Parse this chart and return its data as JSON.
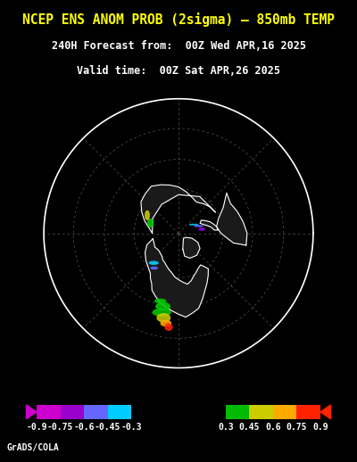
{
  "title_line1": "NCEP ENS ANOM PROB (2sigma) – 850mb TEMP",
  "title_line2": "240H Forecast from:  00Z Wed APR,16 2025",
  "title_line3": "Valid time:  00Z Sat APR,26 2025",
  "background_color": "#000000",
  "title_color": "#ffff00",
  "subtitle_color": "#ffffff",
  "colorbar_values": [
    -0.9,
    -0.75,
    -0.6,
    -0.45,
    -0.3,
    0.3,
    0.45,
    0.6,
    0.75,
    0.9
  ],
  "colorbar_colors": [
    "#cc00cc",
    "#9900cc",
    "#6666ff",
    "#00ccff",
    "#000000",
    "#000000",
    "#00cc00",
    "#cccc00",
    "#ffaa00",
    "#ff0000"
  ],
  "colorbar_segments": [
    {
      "range": [
        -0.9,
        -0.75
      ],
      "color": "#cc00cc"
    },
    {
      "range": [
        -0.75,
        -0.6
      ],
      "color": "#9900cc"
    },
    {
      "range": [
        -0.6,
        -0.45
      ],
      "color": "#6666ff"
    },
    {
      "range": [
        -0.45,
        -0.3
      ],
      "color": "#00ccff"
    },
    {
      "range": [
        -0.3,
        0.3
      ],
      "color": "#000000"
    },
    {
      "range": [
        0.3,
        0.45
      ],
      "color": "#00bb00"
    },
    {
      "range": [
        0.45,
        0.6
      ],
      "color": "#cccc00"
    },
    {
      "range": [
        0.6,
        0.75
      ],
      "color": "#ffaa00"
    },
    {
      "range": [
        0.75,
        0.9
      ],
      "color": "#ff2200"
    }
  ],
  "footer_text": "GrADS/COLA",
  "footer_color": "#ffffff",
  "map_bg": "#000000",
  "land_color": "#ffffff",
  "grid_color": "#444444"
}
